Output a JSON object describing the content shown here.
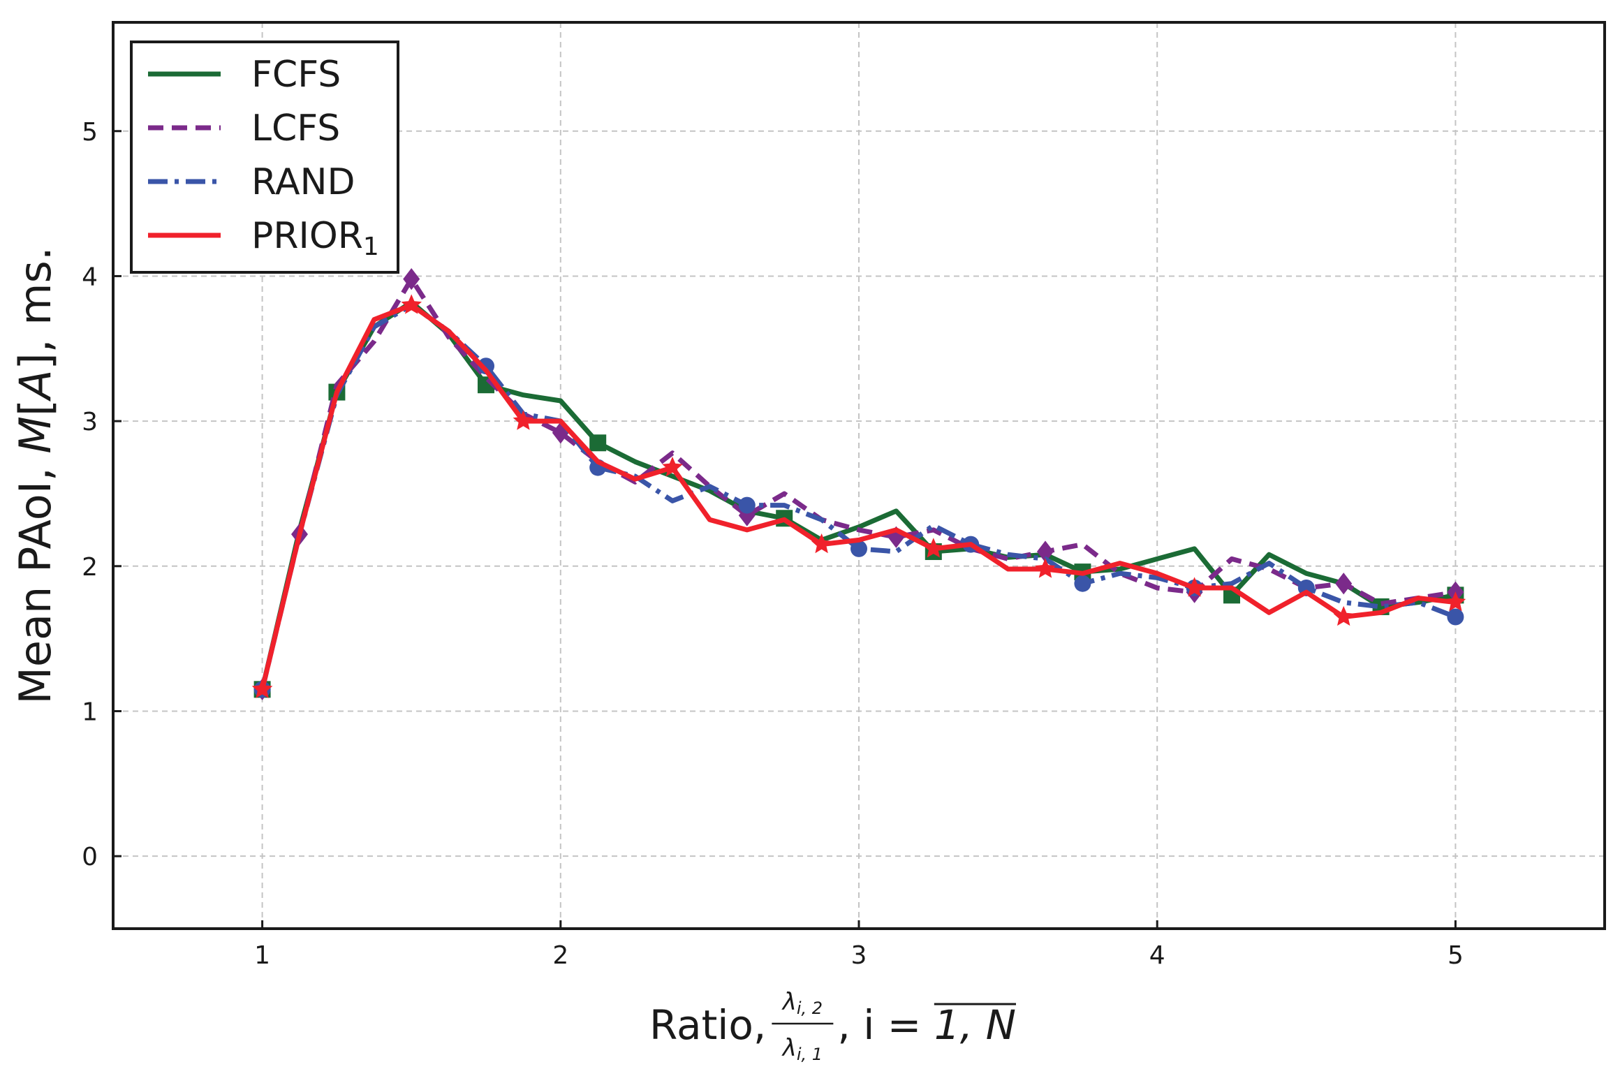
{
  "chart_data": {
    "type": "line",
    "title": "",
    "xlabel": "Ratio, λi,2/λi,1, i = 1,N",
    "xlabel_parts": {
      "prefix": "Ratio,",
      "frac_num": "λ",
      "frac_num_sub": "i, 2",
      "frac_den": "λ",
      "frac_den_sub": "i, 1",
      "suffix": ", i = ",
      "overline": "1, N"
    },
    "ylabel": "Mean PAoI, M[A], ms.",
    "ylabel_parts": {
      "prefix": "Mean PAoI, ",
      "italic": "M",
      "mid": "[",
      "italic2": "A",
      "suffix": "], ms."
    },
    "xlim": [
      0.5,
      5.5
    ],
    "ylim": [
      -0.5,
      5.75
    ],
    "xticks": [
      1,
      2,
      3,
      4,
      5
    ],
    "yticks": [
      0,
      1,
      2,
      3,
      4,
      5
    ],
    "grid": true,
    "legend_location": "top-left",
    "series": [
      {
        "name": "FCFS",
        "color": "#1b6b35",
        "dash": "solid",
        "marker": "square",
        "x": [
          1.0,
          1.125,
          1.25,
          1.375,
          1.5,
          1.625,
          1.75,
          1.875,
          2.0,
          2.125,
          2.25,
          2.375,
          2.5,
          2.625,
          2.75,
          2.875,
          3.0,
          3.125,
          3.25,
          3.375,
          3.5,
          3.625,
          3.75,
          3.875,
          4.0,
          4.125,
          4.25,
          4.375,
          4.5,
          4.625,
          4.75,
          4.875,
          5.0
        ],
        "values": [
          1.15,
          2.25,
          3.2,
          3.65,
          3.82,
          3.6,
          3.25,
          3.18,
          3.14,
          2.85,
          2.72,
          2.62,
          2.52,
          2.38,
          2.33,
          2.18,
          2.27,
          2.38,
          2.1,
          2.12,
          2.06,
          2.08,
          1.96,
          1.98,
          2.05,
          2.12,
          1.8,
          2.08,
          1.95,
          1.88,
          1.72,
          1.75,
          1.8
        ],
        "marker_indices": [
          0,
          2,
          6,
          9,
          14,
          18,
          22,
          26,
          30,
          32
        ]
      },
      {
        "name": "LCFS",
        "color": "#7b2a8a",
        "dash": "dashed",
        "marker": "diamond",
        "x": [
          1.0,
          1.125,
          1.25,
          1.375,
          1.5,
          1.625,
          1.75,
          1.875,
          2.0,
          2.125,
          2.25,
          2.375,
          2.5,
          2.625,
          2.75,
          2.875,
          3.0,
          3.125,
          3.25,
          3.375,
          3.5,
          3.625,
          3.75,
          3.875,
          4.0,
          4.125,
          4.25,
          4.375,
          4.5,
          4.625,
          4.75,
          4.875,
          5.0
        ],
        "values": [
          1.15,
          2.22,
          3.25,
          3.55,
          3.98,
          3.58,
          3.3,
          3.05,
          2.92,
          2.72,
          2.58,
          2.78,
          2.55,
          2.35,
          2.5,
          2.32,
          2.25,
          2.2,
          2.25,
          2.12,
          2.05,
          2.1,
          2.15,
          1.95,
          1.85,
          1.82,
          2.05,
          1.98,
          1.85,
          1.88,
          1.74,
          1.78,
          1.82
        ],
        "marker_indices": [
          0,
          1,
          4,
          8,
          13,
          17,
          21,
          25,
          29,
          32
        ]
      },
      {
        "name": "RAND",
        "color": "#3a55a8",
        "dash": "dashdot",
        "marker": "circle",
        "x": [
          1.0,
          1.125,
          1.25,
          1.375,
          1.5,
          1.625,
          1.75,
          1.875,
          2.0,
          2.125,
          2.25,
          2.375,
          2.5,
          2.625,
          2.75,
          2.875,
          3.0,
          3.125,
          3.25,
          3.375,
          3.5,
          3.625,
          3.75,
          3.875,
          4.0,
          4.125,
          4.25,
          4.375,
          4.5,
          4.625,
          4.75,
          4.875,
          5.0
        ],
        "values": [
          1.15,
          2.22,
          3.18,
          3.65,
          3.8,
          3.62,
          3.38,
          3.05,
          3.0,
          2.68,
          2.62,
          2.45,
          2.55,
          2.42,
          2.42,
          2.32,
          2.12,
          2.1,
          2.28,
          2.15,
          2.08,
          2.05,
          1.88,
          1.95,
          1.92,
          1.85,
          1.88,
          2.02,
          1.85,
          1.75,
          1.72,
          1.75,
          1.65
        ],
        "marker_indices": [
          0,
          6,
          9,
          13,
          16,
          19,
          22,
          25,
          28,
          32
        ]
      },
      {
        "name": "PRIOR",
        "name_sub": "1",
        "color": "#f0212b",
        "dash": "solid",
        "marker": "star",
        "x": [
          1.0,
          1.125,
          1.25,
          1.375,
          1.5,
          1.625,
          1.75,
          1.875,
          2.0,
          2.125,
          2.25,
          2.375,
          2.5,
          2.625,
          2.75,
          2.875,
          3.0,
          3.125,
          3.25,
          3.375,
          3.5,
          3.625,
          3.75,
          3.875,
          4.0,
          4.125,
          4.25,
          4.375,
          4.5,
          4.625,
          4.75,
          4.875,
          5.0
        ],
        "values": [
          1.15,
          2.22,
          3.2,
          3.7,
          3.8,
          3.62,
          3.35,
          3.0,
          3.0,
          2.72,
          2.6,
          2.68,
          2.32,
          2.25,
          2.32,
          2.15,
          2.18,
          2.25,
          2.12,
          2.15,
          1.98,
          1.98,
          1.95,
          2.02,
          1.95,
          1.85,
          1.85,
          1.68,
          1.82,
          1.65,
          1.68,
          1.78,
          1.75
        ],
        "marker_indices": [
          0,
          4,
          7,
          11,
          15,
          18,
          21,
          25,
          29,
          32
        ]
      }
    ]
  }
}
